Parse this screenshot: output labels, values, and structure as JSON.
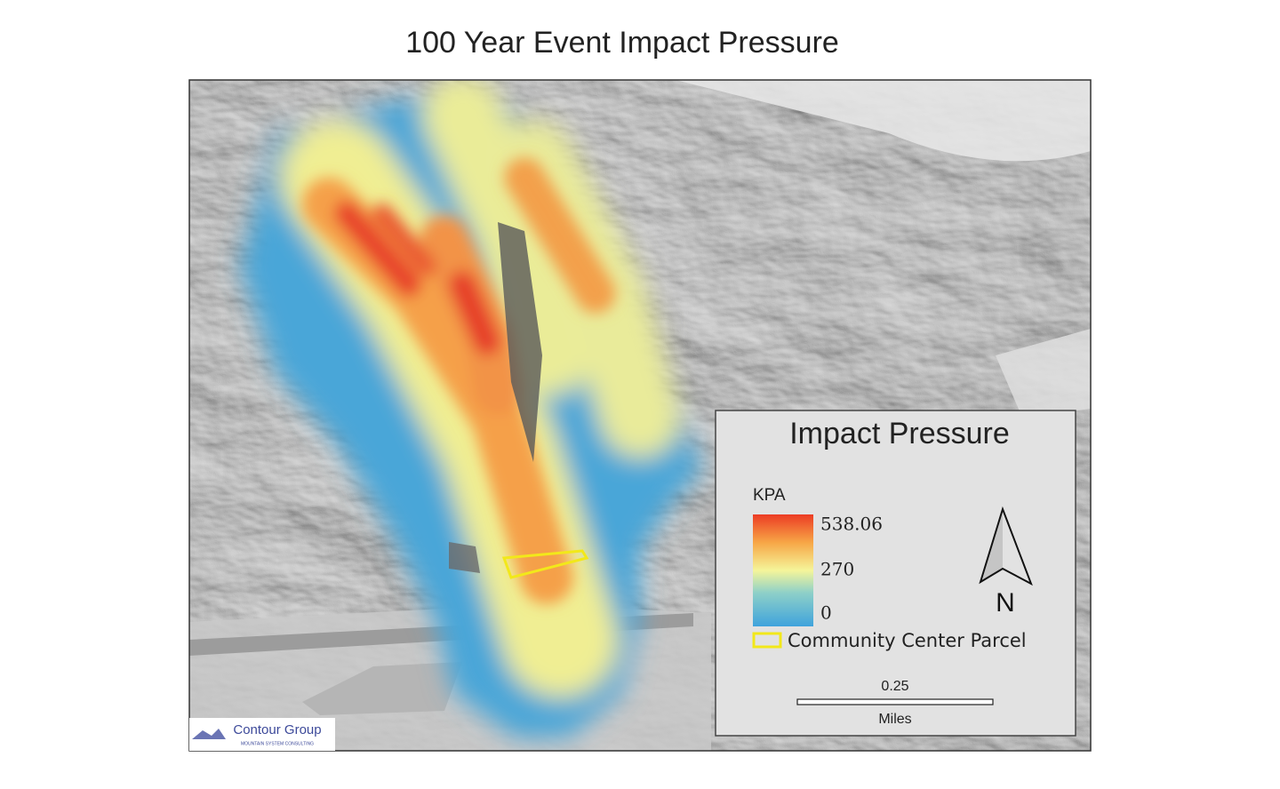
{
  "title": "100 Year Event Impact Pressure",
  "legend": {
    "title": "Impact Pressure",
    "unit": "KPA",
    "ticks": [
      538.06,
      270,
      0
    ],
    "parcel_label": "Community Center Parcel"
  },
  "north_arrow": {
    "label": "N"
  },
  "scale_bar": {
    "value": 0.25,
    "unit": "Miles"
  },
  "logo": {
    "name": "Contour Group",
    "tagline": "MOUNTAIN SYSTEM CONSULTING"
  }
}
